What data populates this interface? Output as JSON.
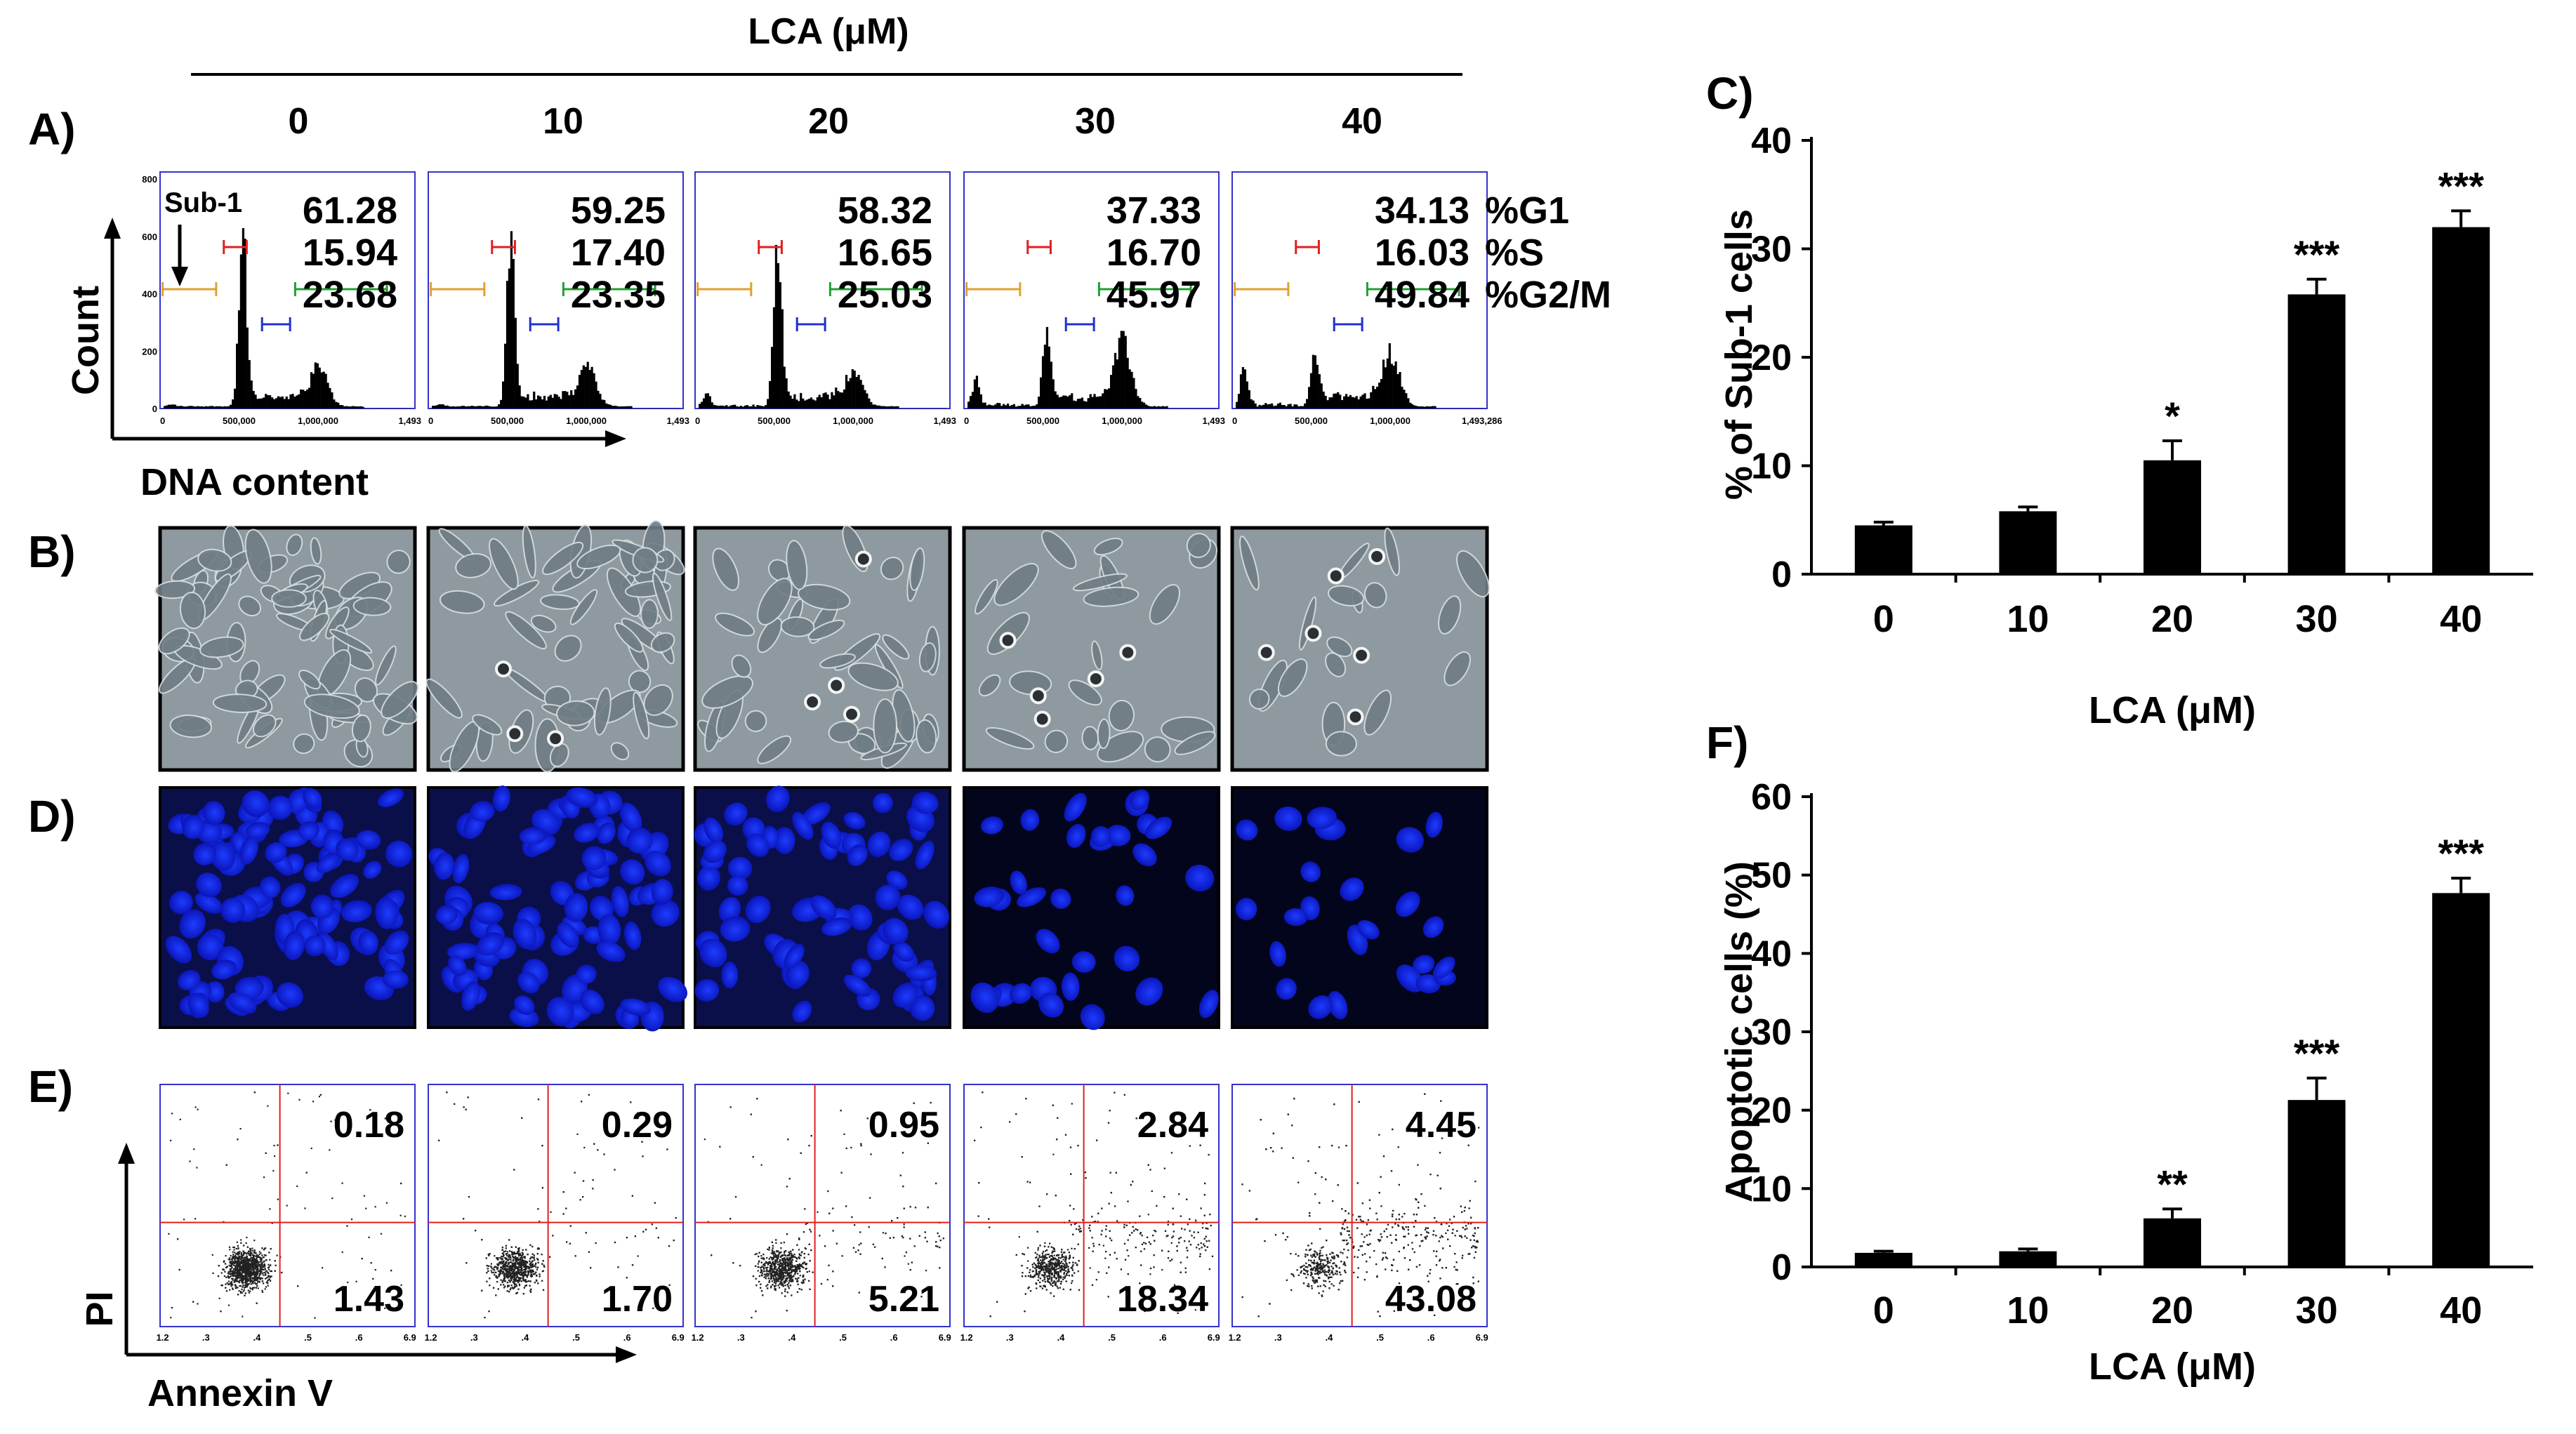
{
  "figure": {
    "header": "LCA (μM)",
    "concentrations": [
      "0",
      "10",
      "20",
      "30",
      "40"
    ]
  },
  "panel_a": {
    "label": "A)",
    "y_label": "Count",
    "x_label": "DNA content",
    "sub1_label": "Sub-1",
    "phase_labels": [
      "%G1",
      "%S",
      "%G2/M"
    ],
    "y_ticks": [
      "0",
      "200",
      "400",
      "600",
      "800"
    ],
    "x_ticks_standard": [
      "0",
      "500,000",
      "1,000,000",
      "1,493"
    ],
    "x_ticks_last": [
      "0",
      "500,000",
      "1,000,000",
      "1,493,286"
    ],
    "histograms": [
      {
        "concentration": "0",
        "g1": "61.28",
        "s": "15.94",
        "g2m": "23.68",
        "sub1_fraction": 0.04,
        "g1_peak": 0.95,
        "g2_peak": 0.22
      },
      {
        "concentration": "10",
        "g1": "59.25",
        "s": "17.40",
        "g2m": "23.35",
        "sub1_fraction": 0.06,
        "g1_peak": 1.0,
        "g2_peak": 0.22
      },
      {
        "concentration": "20",
        "g1": "58.32",
        "s": "16.65",
        "g2m": "25.03",
        "sub1_fraction": 0.28,
        "g1_peak": 0.92,
        "g2_peak": 0.2
      },
      {
        "concentration": "30",
        "g1": "37.33",
        "s": "16.70",
        "g2m": "45.97",
        "sub1_fraction": 0.55,
        "g1_peak": 0.42,
        "g2_peak": 0.35
      },
      {
        "concentration": "40",
        "g1": "34.13",
        "s": "16.03",
        "g2m": "49.84",
        "sub1_fraction": 0.78,
        "g1_peak": 0.35,
        "g2_peak": 0.3
      }
    ]
  },
  "panel_b": {
    "label": "B)",
    "images": [
      "0",
      "10",
      "20",
      "30",
      "40"
    ]
  },
  "panel_d": {
    "label": "D)",
    "images": [
      "0",
      "10",
      "20",
      "30",
      "40"
    ]
  },
  "panel_e": {
    "label": "E)",
    "y_label": "PI",
    "x_label": "Annexin V",
    "x_ticks": [
      "1.2",
      ".3",
      ".4",
      ".5",
      ".6",
      "6.9"
    ],
    "plots": [
      {
        "concentration": "0",
        "upper_right": "0.18",
        "lower_right": "1.43"
      },
      {
        "concentration": "10",
        "upper_right": "0.29",
        "lower_right": "1.70"
      },
      {
        "concentration": "20",
        "upper_right": "0.95",
        "lower_right": "5.21"
      },
      {
        "concentration": "30",
        "upper_right": "2.84",
        "lower_right": "18.34"
      },
      {
        "concentration": "40",
        "upper_right": "4.45",
        "lower_right": "43.08"
      }
    ]
  },
  "chart_data": [
    {
      "panel": "C)",
      "type": "bar",
      "title": "",
      "categories": [
        "0",
        "10",
        "20",
        "30",
        "40"
      ],
      "values": [
        4.5,
        5.8,
        10.5,
        25.8,
        32.0
      ],
      "errors": [
        0.3,
        0.4,
        1.8,
        1.4,
        1.5
      ],
      "significance": [
        "",
        "",
        "*",
        "***",
        "***"
      ],
      "xlabel": "LCA (μM)",
      "ylabel": "% of Sub-1 cells",
      "ylim": [
        0,
        40
      ],
      "yticks": [
        0,
        10,
        20,
        30,
        40
      ]
    },
    {
      "panel": "F)",
      "type": "bar",
      "title": "",
      "categories": [
        "0",
        "10",
        "20",
        "30",
        "40"
      ],
      "values": [
        1.8,
        2.0,
        6.2,
        21.3,
        47.7
      ],
      "errors": [
        0.2,
        0.3,
        1.2,
        2.8,
        1.9
      ],
      "significance": [
        "",
        "",
        "**",
        "***",
        "***"
      ],
      "xlabel": "LCA (μM)",
      "ylabel": "Apoptotic cells (%)",
      "ylim": [
        0,
        60
      ],
      "yticks": [
        0,
        10,
        20,
        30,
        40,
        50,
        60
      ]
    }
  ]
}
